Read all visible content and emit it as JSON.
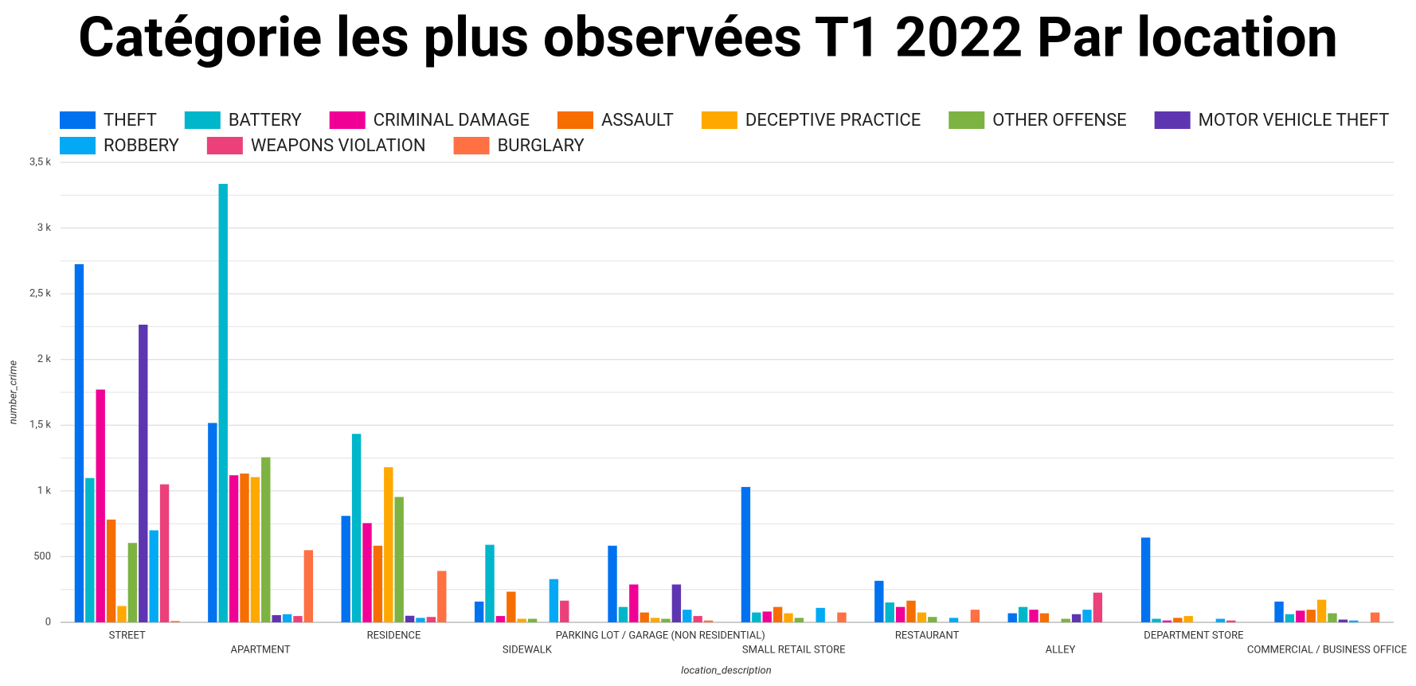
{
  "chart_data": {
    "type": "bar",
    "title": "Catégorie les plus observées T1 2022 Par location",
    "x_label": "location_description",
    "y_label": "number_crime",
    "categories": [
      "STREET",
      "APARTMENT",
      "RESIDENCE",
      "SIDEWALK",
      "PARKING LOT / GARAGE (NON RESIDENTIAL)",
      "SMALL RETAIL STORE",
      "RESTAURANT",
      "ALLEY",
      "DEPARTMENT STORE",
      "COMMERCIAL / BUSINESS OFFICE"
    ],
    "series": [
      {
        "name": "THEFT",
        "color": "#0072f0",
        "values": [
          2725,
          1517,
          810,
          158,
          583,
          1030,
          316,
          69,
          645,
          158
        ]
      },
      {
        "name": "BATTERY",
        "color": "#00b6cb",
        "values": [
          1098,
          3336,
          1434,
          590,
          117,
          75,
          151,
          117,
          27,
          62
        ]
      },
      {
        "name": "CRIMINAL DAMAGE",
        "color": "#f10096",
        "values": [
          1771,
          1119,
          755,
          48,
          288,
          82,
          117,
          96,
          14,
          89
        ]
      },
      {
        "name": "ASSAULT",
        "color": "#f66d00",
        "values": [
          782,
          1132,
          583,
          233,
          75,
          117,
          165,
          69,
          34,
          96
        ]
      },
      {
        "name": "DECEPTIVE PRACTICE",
        "color": "#ffa800",
        "values": [
          124,
          1105,
          1180,
          27,
          34,
          69,
          75,
          0,
          48,
          172
        ]
      },
      {
        "name": "OTHER OFFENSE",
        "color": "#7cb342",
        "values": [
          604,
          1256,
          954,
          27,
          27,
          34,
          41,
          27,
          0,
          69
        ]
      },
      {
        "name": "MOTOR VEHICLE THEFT",
        "color": "#5e35b1",
        "values": [
          2265,
          55,
          50,
          0,
          288,
          0,
          0,
          62,
          0,
          21
        ]
      },
      {
        "name": "ROBBERY",
        "color": "#03a9f4",
        "values": [
          700,
          62,
          34,
          329,
          96,
          110,
          34,
          96,
          27,
          14
        ]
      },
      {
        "name": "WEAPONS VIOLATION",
        "color": "#ec407a",
        "values": [
          1050,
          48,
          41,
          165,
          48,
          0,
          0,
          226,
          14,
          0
        ]
      },
      {
        "name": "BURGLARY",
        "color": "#ff7043",
        "values": [
          10,
          549,
          391,
          0,
          14,
          75,
          96,
          0,
          0,
          75
        ]
      }
    ],
    "ylim": [
      0,
      3500
    ],
    "yticks": [
      0,
      500,
      {
        "value": 1000,
        "label": "1 k"
      },
      {
        "value": 1500,
        "label": "1,5 k"
      },
      {
        "value": 2000,
        "label": "2 k"
      },
      {
        "value": 2500,
        "label": "2,5 k"
      },
      {
        "value": 3000,
        "label": "3 k"
      },
      {
        "value": 3500,
        "label": "3,5 k"
      }
    ],
    "y_minor_ticks": [
      250,
      750,
      1250,
      1750,
      2250,
      2750,
      3250
    ],
    "grid": true,
    "legend": "top"
  }
}
